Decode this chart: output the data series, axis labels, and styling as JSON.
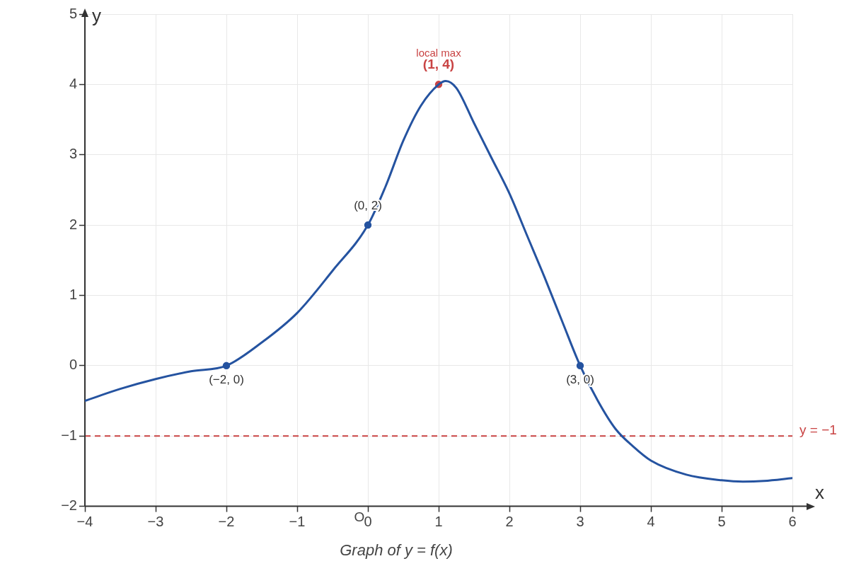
{
  "chart_data": {
    "type": "line",
    "title": "Graph of y = f(x)",
    "xlabel": "x",
    "ylabel": "y",
    "xlim": [
      -4,
      6
    ],
    "ylim": [
      -2,
      5
    ],
    "xticks": [
      {
        "value": -4,
        "label": "−4"
      },
      {
        "value": -3,
        "label": "−3"
      },
      {
        "value": -2,
        "label": "−2"
      },
      {
        "value": -1,
        "label": "−1"
      },
      0,
      1,
      2,
      3,
      4,
      5,
      6
    ],
    "yticks": [
      {
        "value": -2,
        "label": "−2"
      },
      {
        "value": -1,
        "label": "−1"
      },
      0,
      1,
      2,
      3,
      4,
      5
    ],
    "grid": true,
    "legend": false,
    "series": [
      {
        "color": "#2553a0",
        "marker": "none",
        "x": [
          -4,
          -3.5,
          -3,
          -2.5,
          -2,
          -1.5,
          -1,
          -0.5,
          0,
          0.25,
          0.5,
          0.75,
          1,
          1.1,
          1.25,
          1.5,
          1.75,
          2,
          2.25,
          2.5,
          2.75,
          3,
          3.25,
          3.5,
          3.75,
          4,
          4.5,
          5,
          5.3,
          5.6,
          6
        ],
        "values": [
          -0.5,
          -0.33,
          -0.19,
          -0.08,
          0,
          0.33,
          0.75,
          1.35,
          2,
          2.55,
          3.2,
          3.7,
          4,
          4.05,
          3.95,
          3.45,
          2.95,
          2.45,
          1.85,
          1.25,
          0.62,
          0,
          -0.5,
          -0.9,
          -1.15,
          -1.35,
          -1.55,
          -1.63,
          -1.65,
          -1.64,
          -1.6
        ]
      },
      {
        "type": "scatter",
        "color": "#2553a0",
        "marker": "circle",
        "x": [
          -2,
          0,
          3
        ],
        "values": [
          0,
          2,
          0
        ]
      },
      {
        "type": "scatter",
        "color": "#c94444",
        "marker": "circle",
        "x": [
          1
        ],
        "values": [
          4
        ]
      }
    ],
    "ref_lines": [
      {
        "axis": "y",
        "value": -1,
        "label": "y = −1",
        "color": "#c94444",
        "line_style": "dashed"
      }
    ],
    "annotations": [
      {
        "text": "local max",
        "x": 1,
        "y": 4
      },
      {
        "text": "(1, 4)",
        "x": 1,
        "y": 4
      },
      {
        "text": "(0, 2)",
        "x": 0,
        "y": 2
      },
      {
        "text": "(−2, 0)",
        "x": -2,
        "y": 0
      },
      {
        "text": "(3, 0)",
        "x": 3,
        "y": 0
      },
      "O"
    ]
  }
}
